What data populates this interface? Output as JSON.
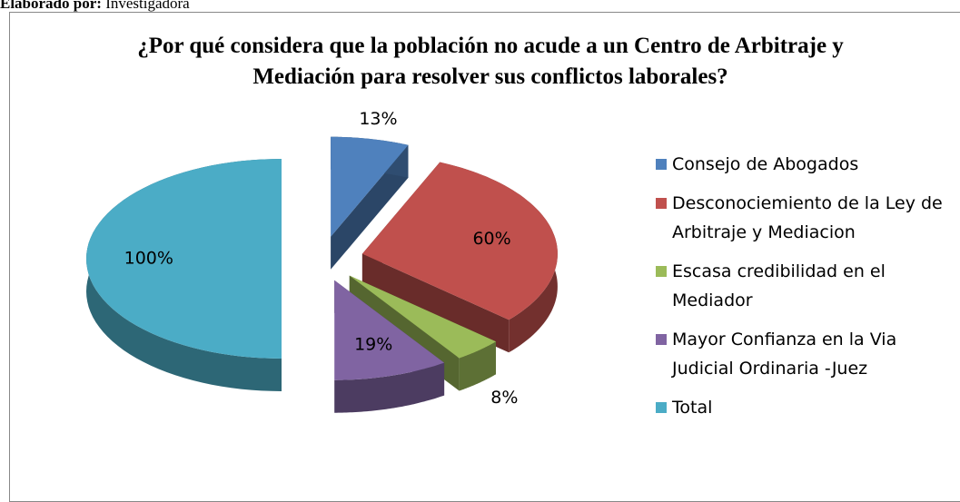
{
  "caption": {
    "label": "Elaborado por:",
    "text": "Investigadora"
  },
  "chart_data": {
    "type": "pie3d",
    "title": "¿Por qué considera que la población no acude a un Centro de Arbitraje y Mediación para resolver sus conflictos laborales?",
    "categories": [
      "Consejo de Abogados",
      "Desconociemiento de la Ley de Arbitraje y Mediacion",
      "Escasa credibilidad en el Mediador",
      "Mayor Confianza en la Via Judicial Ordinaria -Juez",
      "Total"
    ],
    "values": [
      13,
      60,
      8,
      19,
      100
    ],
    "value_labels": [
      "13%",
      "60%",
      "8%",
      "19%",
      "100%"
    ],
    "colors": [
      "#4f81bd",
      "#c0504d",
      "#9bbb59",
      "#8064a2",
      "#4bacc6"
    ],
    "legend": "right"
  }
}
